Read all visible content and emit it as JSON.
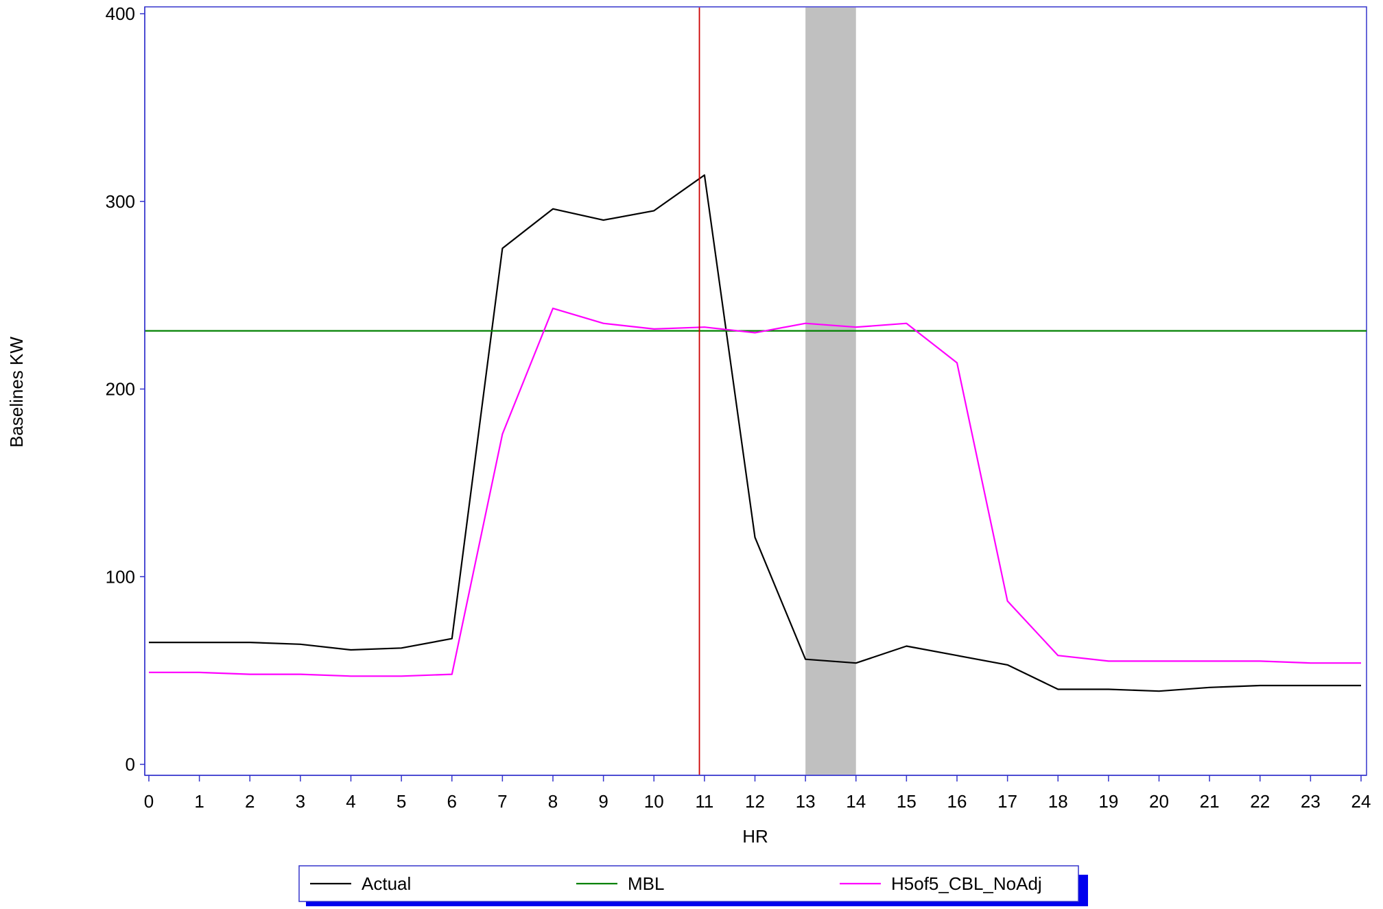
{
  "chart_data": {
    "type": "line",
    "title": "",
    "xlabel": "HR",
    "ylabel": "Baselines KW",
    "xlim": [
      0,
      24
    ],
    "ylim": [
      0,
      400
    ],
    "x_ticks": [
      0,
      1,
      2,
      3,
      4,
      5,
      6,
      7,
      8,
      9,
      10,
      11,
      12,
      13,
      14,
      15,
      16,
      17,
      18,
      19,
      20,
      21,
      22,
      23,
      24
    ],
    "y_ticks": [
      0,
      100,
      200,
      300,
      400
    ],
    "grid": false,
    "legend_position": "bottom",
    "shaded_band": {
      "x_start": 13,
      "x_end": 14,
      "color": "#c0c0c0"
    },
    "vertical_line": {
      "x": 10.9,
      "color": "#cc0000"
    },
    "series": [
      {
        "name": "Actual",
        "color": "#000000",
        "x": [
          0,
          1,
          2,
          3,
          4,
          5,
          6,
          7,
          8,
          9,
          10,
          11,
          12,
          13,
          14,
          15,
          16,
          17,
          18,
          19,
          20,
          21,
          22,
          23,
          24
        ],
        "values": [
          65,
          65,
          65,
          64,
          61,
          62,
          67,
          275,
          296,
          290,
          295,
          314,
          121,
          56,
          54,
          63,
          58,
          53,
          40,
          40,
          39,
          41,
          42,
          42,
          42
        ]
      },
      {
        "name": "MBL",
        "color": "#008000",
        "x": [
          0,
          24
        ],
        "values": [
          231,
          231
        ]
      },
      {
        "name": "H5of5_CBL_NoAdj",
        "color": "#ff00ff",
        "x": [
          0,
          1,
          2,
          3,
          4,
          5,
          6,
          7,
          8,
          9,
          10,
          11,
          12,
          13,
          14,
          15,
          16,
          17,
          18,
          19,
          20,
          21,
          22,
          23,
          24
        ],
        "values": [
          49,
          49,
          48,
          48,
          47,
          47,
          48,
          176,
          243,
          235,
          232,
          233,
          230,
          235,
          233,
          235,
          214,
          87,
          58,
          55,
          55,
          55,
          55,
          54,
          54
        ]
      }
    ]
  }
}
